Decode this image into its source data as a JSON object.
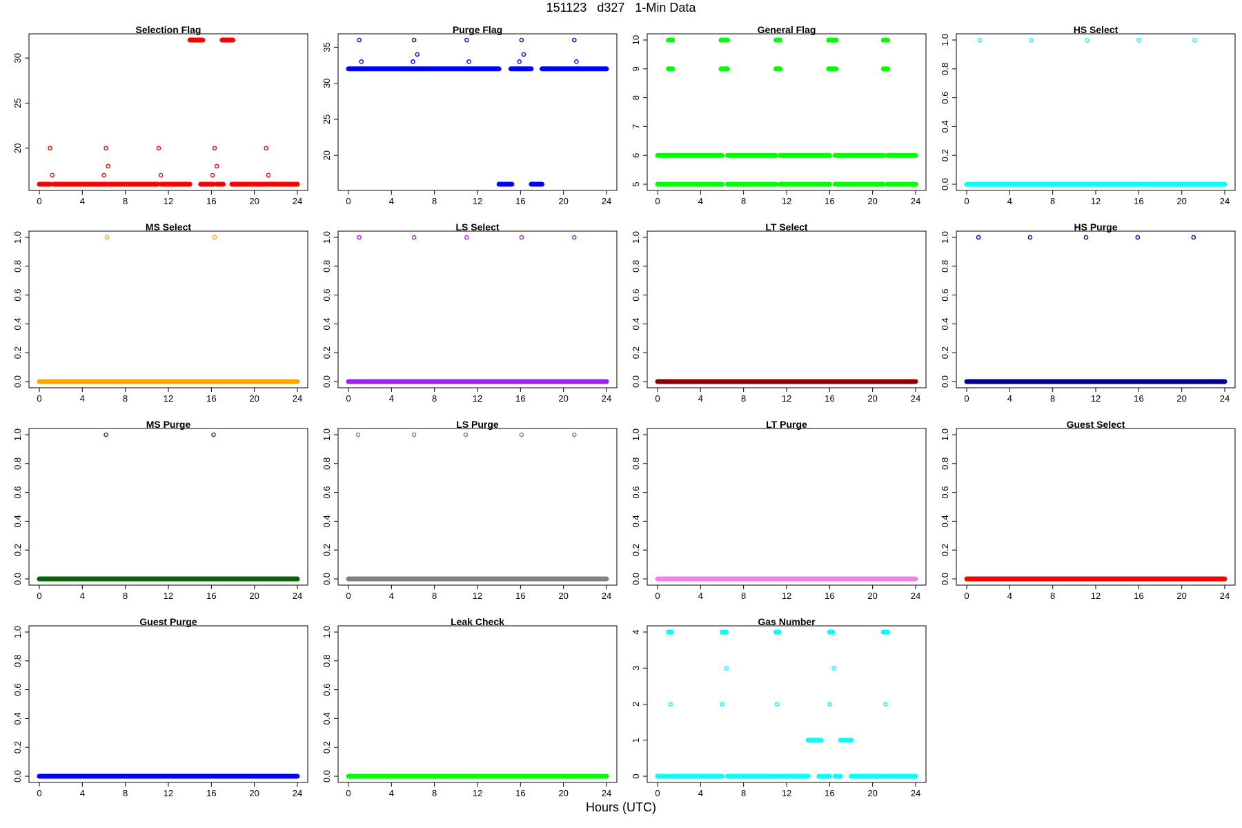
{
  "page": {
    "title": "151123   d327   1-Min Data",
    "xlabel": "Hours (UTC)"
  },
  "chart_data": [
    {
      "type": "scatter",
      "title": "Selection Flag",
      "color": "#ff0000",
      "xlim": [
        0,
        24
      ],
      "ylim": [
        16,
        32
      ],
      "xticks": [
        "0",
        "4",
        "8",
        "12",
        "16",
        "20",
        "24"
      ],
      "yticks": [
        20,
        25,
        30
      ],
      "segments": [
        {
          "x": [
            0,
            1.0
          ],
          "y": 16
        },
        {
          "x": [
            1.3,
            6.3
          ],
          "y": 16
        },
        {
          "x": [
            6.5,
            11.0
          ],
          "y": 16
        },
        {
          "x": [
            11.3,
            14.0
          ],
          "y": 16
        },
        {
          "x": [
            14.0,
            15.2
          ],
          "y": 32
        },
        {
          "x": [
            15.0,
            16.2
          ],
          "y": 16
        },
        {
          "x": [
            16.5,
            17.1
          ],
          "y": 16
        },
        {
          "x": [
            17.0,
            18.0
          ],
          "y": 32
        },
        {
          "x": [
            17.9,
            21.2
          ],
          "y": 16
        },
        {
          "x": [
            21.4,
            24
          ],
          "y": 16
        }
      ],
      "points": [
        {
          "x": 1.0,
          "y": 20
        },
        {
          "x": 1.2,
          "y": 17
        },
        {
          "x": 6.0,
          "y": 17
        },
        {
          "x": 6.2,
          "y": 20
        },
        {
          "x": 6.4,
          "y": 18
        },
        {
          "x": 11.1,
          "y": 20
        },
        {
          "x": 11.3,
          "y": 17
        },
        {
          "x": 16.1,
          "y": 17
        },
        {
          "x": 16.3,
          "y": 20
        },
        {
          "x": 16.5,
          "y": 18
        },
        {
          "x": 21.1,
          "y": 20
        },
        {
          "x": 21.3,
          "y": 17
        }
      ]
    },
    {
      "type": "scatter",
      "title": "Purge Flag",
      "color": "#0000ff",
      "xlim": [
        0,
        24
      ],
      "ylim": [
        16,
        36
      ],
      "xticks": [
        "0",
        "4",
        "8",
        "12",
        "16",
        "20",
        "24"
      ],
      "yticks": [
        20,
        25,
        30,
        35
      ],
      "segments": [
        {
          "x": [
            0,
            14.0
          ],
          "y": 32
        },
        {
          "x": [
            14.0,
            15.2
          ],
          "y": 16
        },
        {
          "x": [
            15.1,
            17.0
          ],
          "y": 32
        },
        {
          "x": [
            17.0,
            18.0
          ],
          "y": 16
        },
        {
          "x": [
            18.0,
            24
          ],
          "y": 32
        }
      ],
      "points": [
        {
          "x": 1.0,
          "y": 36
        },
        {
          "x": 1.2,
          "y": 33
        },
        {
          "x": 6.0,
          "y": 33
        },
        {
          "x": 6.1,
          "y": 36
        },
        {
          "x": 6.4,
          "y": 34
        },
        {
          "x": 11.0,
          "y": 36
        },
        {
          "x": 11.2,
          "y": 33
        },
        {
          "x": 15.9,
          "y": 33
        },
        {
          "x": 16.1,
          "y": 36
        },
        {
          "x": 16.3,
          "y": 34
        },
        {
          "x": 21.0,
          "y": 36
        },
        {
          "x": 21.2,
          "y": 33
        }
      ]
    },
    {
      "type": "scatter",
      "title": "General Flag",
      "color": "#00ff00",
      "xlim": [
        0,
        24
      ],
      "ylim": [
        5,
        10
      ],
      "xticks": [
        "0",
        "4",
        "8",
        "12",
        "16",
        "20",
        "24"
      ],
      "yticks": [
        5,
        6,
        7,
        8,
        9,
        10
      ],
      "segments": [
        {
          "x": [
            0,
            6.0
          ],
          "y": 5
        },
        {
          "x": [
            0,
            6.0
          ],
          "y": 6
        },
        {
          "x": [
            6.5,
            11.0
          ],
          "y": 5
        },
        {
          "x": [
            6.5,
            11.0
          ],
          "y": 6
        },
        {
          "x": [
            11.4,
            16.0
          ],
          "y": 5
        },
        {
          "x": [
            11.4,
            16.0
          ],
          "y": 6
        },
        {
          "x": [
            16.5,
            21.0
          ],
          "y": 5
        },
        {
          "x": [
            16.5,
            21.0
          ],
          "y": 6
        },
        {
          "x": [
            21.4,
            24
          ],
          "y": 5
        },
        {
          "x": [
            21.4,
            24
          ],
          "y": 6
        },
        {
          "x": [
            1.0,
            1.4
          ],
          "y": 9
        },
        {
          "x": [
            1.0,
            1.4
          ],
          "y": 10
        },
        {
          "x": [
            5.9,
            6.5
          ],
          "y": 9
        },
        {
          "x": [
            5.9,
            6.5
          ],
          "y": 10
        },
        {
          "x": [
            11.0,
            11.4
          ],
          "y": 9
        },
        {
          "x": [
            11.0,
            11.4
          ],
          "y": 10
        },
        {
          "x": [
            15.9,
            16.6
          ],
          "y": 9
        },
        {
          "x": [
            15.9,
            16.6
          ],
          "y": 10
        },
        {
          "x": [
            21.0,
            21.4
          ],
          "y": 9
        },
        {
          "x": [
            21.0,
            21.4
          ],
          "y": 10
        }
      ],
      "points": []
    },
    {
      "type": "scatter",
      "title": "HS Select",
      "color": "#00ffff",
      "xlim": [
        0,
        24
      ],
      "ylim": [
        0,
        1
      ],
      "xticks": [
        "0",
        "4",
        "8",
        "12",
        "16",
        "20",
        "24"
      ],
      "yticks": [
        "0.0",
        "0.2",
        "0.4",
        "0.6",
        "0.8",
        "1.0"
      ],
      "segments": [
        {
          "x": [
            0,
            24
          ],
          "y": 0
        }
      ],
      "points": [
        {
          "x": 1.2,
          "y": 1
        },
        {
          "x": 6.0,
          "y": 1
        },
        {
          "x": 11.2,
          "y": 1
        },
        {
          "x": 16.0,
          "y": 1
        },
        {
          "x": 21.2,
          "y": 1
        }
      ]
    },
    {
      "type": "scatter",
      "title": "MS Select",
      "color": "#ffa500",
      "xlim": [
        0,
        24
      ],
      "ylim": [
        0,
        1
      ],
      "xticks": [
        "0",
        "4",
        "8",
        "12",
        "16",
        "20",
        "24"
      ],
      "yticks": [
        "0.0",
        "0.2",
        "0.4",
        "0.6",
        "0.8",
        "1.0"
      ],
      "segments": [
        {
          "x": [
            0,
            24
          ],
          "y": 0
        }
      ],
      "points": [
        {
          "x": 6.3,
          "y": 1
        },
        {
          "x": 16.3,
          "y": 1
        }
      ]
    },
    {
      "type": "scatter",
      "title": "LS Select",
      "color": "#a020f0",
      "xlim": [
        0,
        24
      ],
      "ylim": [
        0,
        1
      ],
      "xticks": [
        "0",
        "4",
        "8",
        "12",
        "16",
        "20",
        "24"
      ],
      "yticks": [
        "0.0",
        "0.2",
        "0.4",
        "0.6",
        "0.8",
        "1.0"
      ],
      "segments": [
        {
          "x": [
            0,
            24
          ],
          "y": 0
        }
      ],
      "points": [
        {
          "x": 1.0,
          "y": 1
        },
        {
          "x": 6.1,
          "y": 1
        },
        {
          "x": 11.0,
          "y": 1
        },
        {
          "x": 16.1,
          "y": 1
        },
        {
          "x": 21.0,
          "y": 1
        }
      ]
    },
    {
      "type": "scatter",
      "title": "LT Select",
      "color": "#8b0000",
      "xlim": [
        0,
        24
      ],
      "ylim": [
        0,
        1
      ],
      "xticks": [
        "0",
        "4",
        "8",
        "12",
        "16",
        "20",
        "24"
      ],
      "yticks": [
        "0.0",
        "0.2",
        "0.4",
        "0.6",
        "0.8",
        "1.0"
      ],
      "segments": [
        {
          "x": [
            0,
            24
          ],
          "y": 0
        }
      ],
      "points": []
    },
    {
      "type": "scatter",
      "title": "HS Purge",
      "color": "#00008b",
      "xlim": [
        0,
        24
      ],
      "ylim": [
        0,
        1
      ],
      "xticks": [
        "0",
        "4",
        "8",
        "12",
        "16",
        "20",
        "24"
      ],
      "yticks": [
        "0.0",
        "0.2",
        "0.4",
        "0.6",
        "0.8",
        "1.0"
      ],
      "segments": [
        {
          "x": [
            0,
            24
          ],
          "y": 0
        }
      ],
      "points": [
        {
          "x": 1.1,
          "y": 1
        },
        {
          "x": 5.9,
          "y": 1
        },
        {
          "x": 11.1,
          "y": 1
        },
        {
          "x": 15.9,
          "y": 1
        },
        {
          "x": 21.1,
          "y": 1
        }
      ]
    },
    {
      "type": "scatter",
      "title": "MS Purge",
      "color": "#006400",
      "xlim": [
        0,
        24
      ],
      "ylim": [
        0,
        1
      ],
      "xticks": [
        "0",
        "4",
        "8",
        "12",
        "16",
        "20",
        "24"
      ],
      "yticks": [
        "0.0",
        "0.2",
        "0.4",
        "0.6",
        "0.8",
        "1.0"
      ],
      "segments": [
        {
          "x": [
            0,
            24
          ],
          "y": 0
        }
      ],
      "points": [
        {
          "x": 6.2,
          "y": 1
        },
        {
          "x": 16.2,
          "y": 1
        }
      ]
    },
    {
      "type": "scatter",
      "title": "LS Purge",
      "color": "#808080",
      "xlim": [
        0,
        24
      ],
      "ylim": [
        0,
        1
      ],
      "xticks": [
        "0",
        "4",
        "8",
        "12",
        "16",
        "20",
        "24"
      ],
      "yticks": [
        "0.0",
        "0.2",
        "0.4",
        "0.6",
        "0.8",
        "1.0"
      ],
      "segments": [
        {
          "x": [
            0,
            24
          ],
          "y": 0
        }
      ],
      "points": [
        {
          "x": 0.9,
          "y": 1
        },
        {
          "x": 6.1,
          "y": 1
        },
        {
          "x": 10.9,
          "y": 1
        },
        {
          "x": 16.1,
          "y": 1
        },
        {
          "x": 21.0,
          "y": 1
        }
      ]
    },
    {
      "type": "scatter",
      "title": "LT Purge",
      "color": "#ee82ee",
      "xlim": [
        0,
        24
      ],
      "ylim": [
        0,
        1
      ],
      "xticks": [
        "0",
        "4",
        "8",
        "12",
        "16",
        "20",
        "24"
      ],
      "yticks": [
        "0.0",
        "0.2",
        "0.4",
        "0.6",
        "0.8",
        "1.0"
      ],
      "segments": [
        {
          "x": [
            0,
            24
          ],
          "y": 0
        }
      ],
      "points": []
    },
    {
      "type": "scatter",
      "title": "Guest Select",
      "color": "#ff0000",
      "xlim": [
        0,
        24
      ],
      "ylim": [
        0,
        1
      ],
      "xticks": [
        "0",
        "4",
        "8",
        "12",
        "16",
        "20",
        "24"
      ],
      "yticks": [
        "0.0",
        "0.2",
        "0.4",
        "0.6",
        "0.8",
        "1.0"
      ],
      "segments": [
        {
          "x": [
            0,
            24
          ],
          "y": 0
        }
      ],
      "points": []
    },
    {
      "type": "scatter",
      "title": "Guest Purge",
      "color": "#0000ff",
      "xlim": [
        0,
        24
      ],
      "ylim": [
        0,
        1
      ],
      "xticks": [
        "0",
        "4",
        "8",
        "12",
        "16",
        "20",
        "24"
      ],
      "yticks": [
        "0.0",
        "0.2",
        "0.4",
        "0.6",
        "0.8",
        "1.0"
      ],
      "segments": [
        {
          "x": [
            0,
            24
          ],
          "y": 0
        }
      ],
      "points": []
    },
    {
      "type": "scatter",
      "title": "Leak Check",
      "color": "#00ff00",
      "xlim": [
        0,
        24
      ],
      "ylim": [
        0,
        1
      ],
      "xticks": [
        "0",
        "4",
        "8",
        "12",
        "16",
        "20",
        "24"
      ],
      "yticks": [
        "0.0",
        "0.2",
        "0.4",
        "0.6",
        "0.8",
        "1.0"
      ],
      "segments": [
        {
          "x": [
            0,
            24
          ],
          "y": 0
        }
      ],
      "points": []
    },
    {
      "type": "scatter",
      "title": "Gas Number",
      "color": "#00ffff",
      "xlim": [
        0,
        24
      ],
      "ylim": [
        0,
        4
      ],
      "xticks": [
        "0",
        "4",
        "8",
        "12",
        "16",
        "20",
        "24"
      ],
      "yticks": [
        0,
        1,
        2,
        3,
        4
      ],
      "segments": [
        {
          "x": [
            0,
            1.0
          ],
          "y": 0
        },
        {
          "x": [
            1.3,
            6.0
          ],
          "y": 0
        },
        {
          "x": [
            6.5,
            11.0
          ],
          "y": 0
        },
        {
          "x": [
            11.3,
            14.0
          ],
          "y": 0
        },
        {
          "x": [
            14.0,
            15.2
          ],
          "y": 1
        },
        {
          "x": [
            15.0,
            16.0
          ],
          "y": 0
        },
        {
          "x": [
            16.5,
            17.0
          ],
          "y": 0
        },
        {
          "x": [
            17.0,
            18.0
          ],
          "y": 1
        },
        {
          "x": [
            18.0,
            21.0
          ],
          "y": 0
        },
        {
          "x": [
            21.3,
            24
          ],
          "y": 0
        },
        {
          "x": [
            1.0,
            1.3
          ],
          "y": 4
        },
        {
          "x": [
            6.0,
            6.4
          ],
          "y": 4
        },
        {
          "x": [
            11.0,
            11.3
          ],
          "y": 4
        },
        {
          "x": [
            16.0,
            16.3
          ],
          "y": 4
        },
        {
          "x": [
            21.0,
            21.4
          ],
          "y": 4
        }
      ],
      "points": [
        {
          "x": 1.2,
          "y": 2
        },
        {
          "x": 6.0,
          "y": 2
        },
        {
          "x": 6.4,
          "y": 3
        },
        {
          "x": 11.1,
          "y": 2
        },
        {
          "x": 16.0,
          "y": 2
        },
        {
          "x": 16.4,
          "y": 3
        },
        {
          "x": 21.2,
          "y": 2
        }
      ]
    }
  ]
}
